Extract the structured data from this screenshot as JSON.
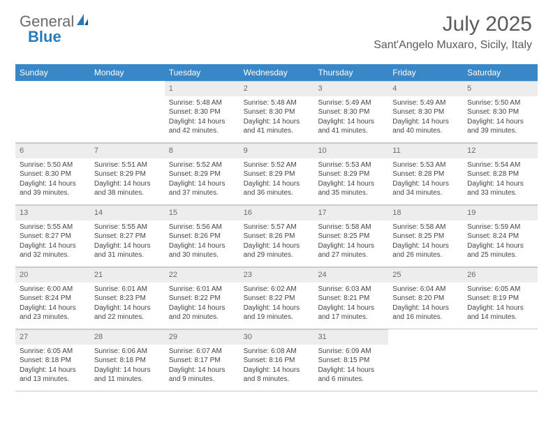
{
  "brand": {
    "part1": "General",
    "part2": "Blue"
  },
  "title": "July 2025",
  "location": "Sant'Angelo Muxaro, Sicily, Italy",
  "day_header_bg": "#3a87c7",
  "daynames": [
    "Sunday",
    "Monday",
    "Tuesday",
    "Wednesday",
    "Thursday",
    "Friday",
    "Saturday"
  ],
  "colors": {
    "header_bg": "#3a87c7",
    "header_text": "#ffffff",
    "daynum_bg": "#ededed",
    "body_bg": "#ffffff",
    "text": "#444444",
    "title_text": "#5a5a5a",
    "rule": "#c5c5c5"
  },
  "typography": {
    "title_fontsize": 30,
    "location_fontsize": 16,
    "dayhead_fontsize": 12,
    "daynum_fontsize": 11,
    "cell_fontsize": 10,
    "font_family": "Arial"
  },
  "weeks": [
    [
      {
        "n": null
      },
      {
        "n": null
      },
      {
        "n": 1,
        "sr": "5:48 AM",
        "ss": "8:30 PM",
        "dl": "14 hours and 42 minutes."
      },
      {
        "n": 2,
        "sr": "5:48 AM",
        "ss": "8:30 PM",
        "dl": "14 hours and 41 minutes."
      },
      {
        "n": 3,
        "sr": "5:49 AM",
        "ss": "8:30 PM",
        "dl": "14 hours and 41 minutes."
      },
      {
        "n": 4,
        "sr": "5:49 AM",
        "ss": "8:30 PM",
        "dl": "14 hours and 40 minutes."
      },
      {
        "n": 5,
        "sr": "5:50 AM",
        "ss": "8:30 PM",
        "dl": "14 hours and 39 minutes."
      }
    ],
    [
      {
        "n": 6,
        "sr": "5:50 AM",
        "ss": "8:30 PM",
        "dl": "14 hours and 39 minutes."
      },
      {
        "n": 7,
        "sr": "5:51 AM",
        "ss": "8:29 PM",
        "dl": "14 hours and 38 minutes."
      },
      {
        "n": 8,
        "sr": "5:52 AM",
        "ss": "8:29 PM",
        "dl": "14 hours and 37 minutes."
      },
      {
        "n": 9,
        "sr": "5:52 AM",
        "ss": "8:29 PM",
        "dl": "14 hours and 36 minutes."
      },
      {
        "n": 10,
        "sr": "5:53 AM",
        "ss": "8:29 PM",
        "dl": "14 hours and 35 minutes."
      },
      {
        "n": 11,
        "sr": "5:53 AM",
        "ss": "8:28 PM",
        "dl": "14 hours and 34 minutes."
      },
      {
        "n": 12,
        "sr": "5:54 AM",
        "ss": "8:28 PM",
        "dl": "14 hours and 33 minutes."
      }
    ],
    [
      {
        "n": 13,
        "sr": "5:55 AM",
        "ss": "8:27 PM",
        "dl": "14 hours and 32 minutes."
      },
      {
        "n": 14,
        "sr": "5:55 AM",
        "ss": "8:27 PM",
        "dl": "14 hours and 31 minutes."
      },
      {
        "n": 15,
        "sr": "5:56 AM",
        "ss": "8:26 PM",
        "dl": "14 hours and 30 minutes."
      },
      {
        "n": 16,
        "sr": "5:57 AM",
        "ss": "8:26 PM",
        "dl": "14 hours and 29 minutes."
      },
      {
        "n": 17,
        "sr": "5:58 AM",
        "ss": "8:25 PM",
        "dl": "14 hours and 27 minutes."
      },
      {
        "n": 18,
        "sr": "5:58 AM",
        "ss": "8:25 PM",
        "dl": "14 hours and 26 minutes."
      },
      {
        "n": 19,
        "sr": "5:59 AM",
        "ss": "8:24 PM",
        "dl": "14 hours and 25 minutes."
      }
    ],
    [
      {
        "n": 20,
        "sr": "6:00 AM",
        "ss": "8:24 PM",
        "dl": "14 hours and 23 minutes."
      },
      {
        "n": 21,
        "sr": "6:01 AM",
        "ss": "8:23 PM",
        "dl": "14 hours and 22 minutes."
      },
      {
        "n": 22,
        "sr": "6:01 AM",
        "ss": "8:22 PM",
        "dl": "14 hours and 20 minutes."
      },
      {
        "n": 23,
        "sr": "6:02 AM",
        "ss": "8:22 PM",
        "dl": "14 hours and 19 minutes."
      },
      {
        "n": 24,
        "sr": "6:03 AM",
        "ss": "8:21 PM",
        "dl": "14 hours and 17 minutes."
      },
      {
        "n": 25,
        "sr": "6:04 AM",
        "ss": "8:20 PM",
        "dl": "14 hours and 16 minutes."
      },
      {
        "n": 26,
        "sr": "6:05 AM",
        "ss": "8:19 PM",
        "dl": "14 hours and 14 minutes."
      }
    ],
    [
      {
        "n": 27,
        "sr": "6:05 AM",
        "ss": "8:18 PM",
        "dl": "14 hours and 13 minutes."
      },
      {
        "n": 28,
        "sr": "6:06 AM",
        "ss": "8:18 PM",
        "dl": "14 hours and 11 minutes."
      },
      {
        "n": 29,
        "sr": "6:07 AM",
        "ss": "8:17 PM",
        "dl": "14 hours and 9 minutes."
      },
      {
        "n": 30,
        "sr": "6:08 AM",
        "ss": "8:16 PM",
        "dl": "14 hours and 8 minutes."
      },
      {
        "n": 31,
        "sr": "6:09 AM",
        "ss": "8:15 PM",
        "dl": "14 hours and 6 minutes."
      },
      {
        "n": null
      },
      {
        "n": null
      }
    ]
  ],
  "labels": {
    "sunrise_prefix": "Sunrise: ",
    "sunset_prefix": "Sunset: ",
    "daylight_prefix": "Daylight: "
  }
}
